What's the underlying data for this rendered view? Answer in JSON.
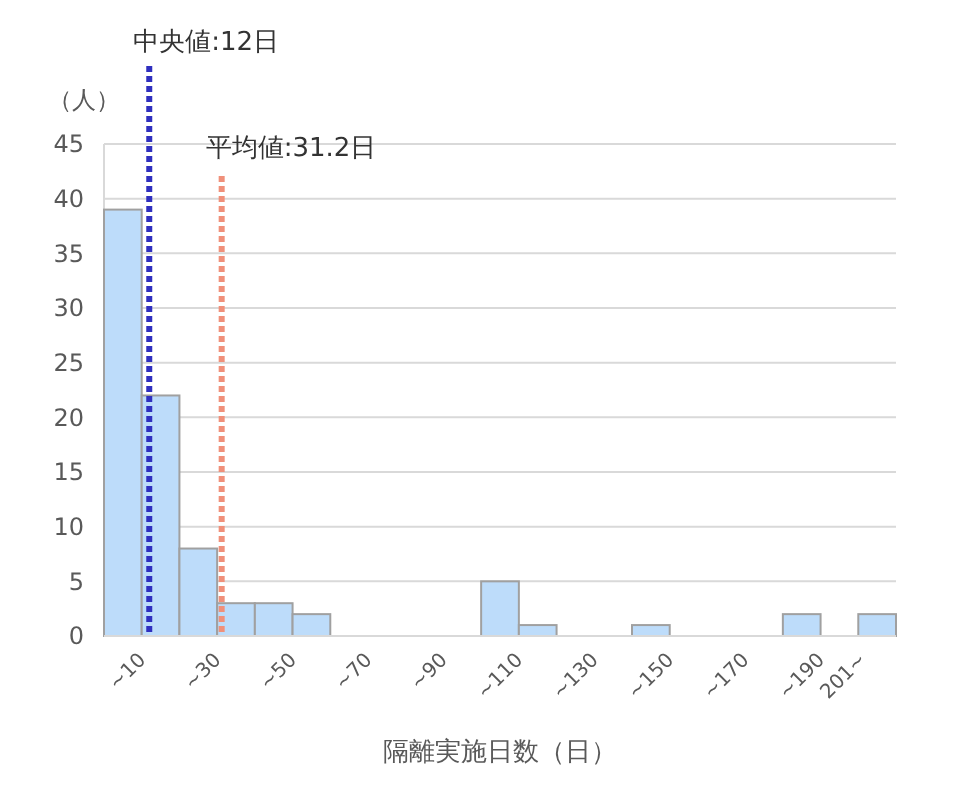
{
  "chart_data": {
    "type": "histogram",
    "ylabel": "（人）",
    "xlabel": "隔離実施日数（日）",
    "bins": [
      0,
      10,
      20,
      30,
      40,
      50,
      60,
      70,
      80,
      90,
      100,
      110,
      120,
      130,
      140,
      150,
      160,
      170,
      180,
      190,
      200,
      210
    ],
    "values": [
      39,
      22,
      8,
      3,
      3,
      2,
      0,
      0,
      0,
      0,
      5,
      1,
      0,
      0,
      1,
      0,
      0,
      0,
      2,
      0,
      2
    ],
    "color": "#bddcfa",
    "xlim": [
      0,
      210
    ],
    "xticks": [
      {
        "value": 10,
        "label": "~10"
      },
      {
        "value": 30,
        "label": "~30"
      },
      {
        "value": 50,
        "label": "~50"
      },
      {
        "value": 70,
        "label": "~70"
      },
      {
        "value": 90,
        "label": "~90"
      },
      {
        "value": 110,
        "label": "~110"
      },
      {
        "value": 130,
        "label": "~130"
      },
      {
        "value": 150,
        "label": "~150"
      },
      {
        "value": 170,
        "label": "~170"
      },
      {
        "value": 190,
        "label": "~190"
      },
      {
        "value": 201,
        "label": "201~"
      }
    ],
    "ylim": [
      0,
      45
    ],
    "yticks": [
      0,
      5,
      10,
      15,
      20,
      25,
      30,
      35,
      40,
      45
    ],
    "grid": "y",
    "ref_lines": [
      {
        "axis": "x",
        "value": 12,
        "label": "中央値:12日",
        "color": "#2f2fbf",
        "line_style": "dotted"
      },
      {
        "axis": "x",
        "value": 31.2,
        "label": "平均値:31.2日",
        "color": "#f0907a",
        "line_style": "dotted"
      }
    ]
  }
}
